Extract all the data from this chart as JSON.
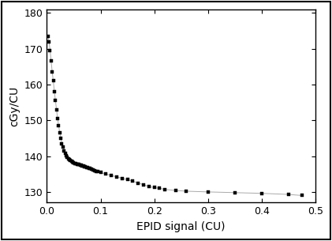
{
  "title": "",
  "xlabel": "EPID signal (CU)",
  "ylabel": "cGy/CU",
  "xlim": [
    0.0,
    0.5
  ],
  "ylim": [
    127,
    181
  ],
  "yticks": [
    130,
    140,
    150,
    160,
    170,
    180
  ],
  "xticks": [
    0.0,
    0.1,
    0.2,
    0.3,
    0.4,
    0.5
  ],
  "line_color": "#aaaaaa",
  "marker_color": "black",
  "marker": "s",
  "marker_size": 3.5,
  "line_width": 0.7,
  "background_color": "#ffffff",
  "outer_border_color": "#333333",
  "x_dense": [
    0.002,
    0.004,
    0.006,
    0.008,
    0.01,
    0.012,
    0.014,
    0.016,
    0.018,
    0.02,
    0.022,
    0.024,
    0.026,
    0.028,
    0.03,
    0.032,
    0.034,
    0.036,
    0.038,
    0.04,
    0.042,
    0.044,
    0.046,
    0.048,
    0.05,
    0.052,
    0.054,
    0.056,
    0.058,
    0.06,
    0.062,
    0.064,
    0.066,
    0.068,
    0.07,
    0.072,
    0.074,
    0.076,
    0.078,
    0.08,
    0.083,
    0.086,
    0.089,
    0.092,
    0.095,
    0.1,
    0.11,
    0.12,
    0.13,
    0.14,
    0.15,
    0.16,
    0.17,
    0.18,
    0.19,
    0.2,
    0.21,
    0.22,
    0.24,
    0.26,
    0.3,
    0.35,
    0.4,
    0.45,
    0.475
  ],
  "y_dense": [
    173.5,
    172.0,
    169.5,
    166.5,
    163.5,
    161.0,
    158.0,
    155.5,
    153.0,
    150.5,
    148.5,
    146.5,
    145.0,
    143.5,
    142.5,
    141.5,
    140.8,
    140.2,
    139.7,
    139.3,
    139.0,
    138.8,
    138.6,
    138.4,
    138.2,
    138.0,
    137.9,
    137.8,
    137.7,
    137.6,
    137.5,
    137.4,
    137.3,
    137.2,
    137.1,
    137.0,
    136.9,
    136.8,
    136.7,
    136.6,
    136.4,
    136.2,
    136.0,
    135.8,
    135.6,
    135.4,
    135.0,
    134.6,
    134.2,
    133.8,
    133.4,
    133.0,
    132.5,
    132.0,
    131.5,
    131.2,
    131.0,
    130.7,
    130.4,
    130.2,
    130.0,
    129.8,
    129.6,
    129.3,
    129.0
  ]
}
